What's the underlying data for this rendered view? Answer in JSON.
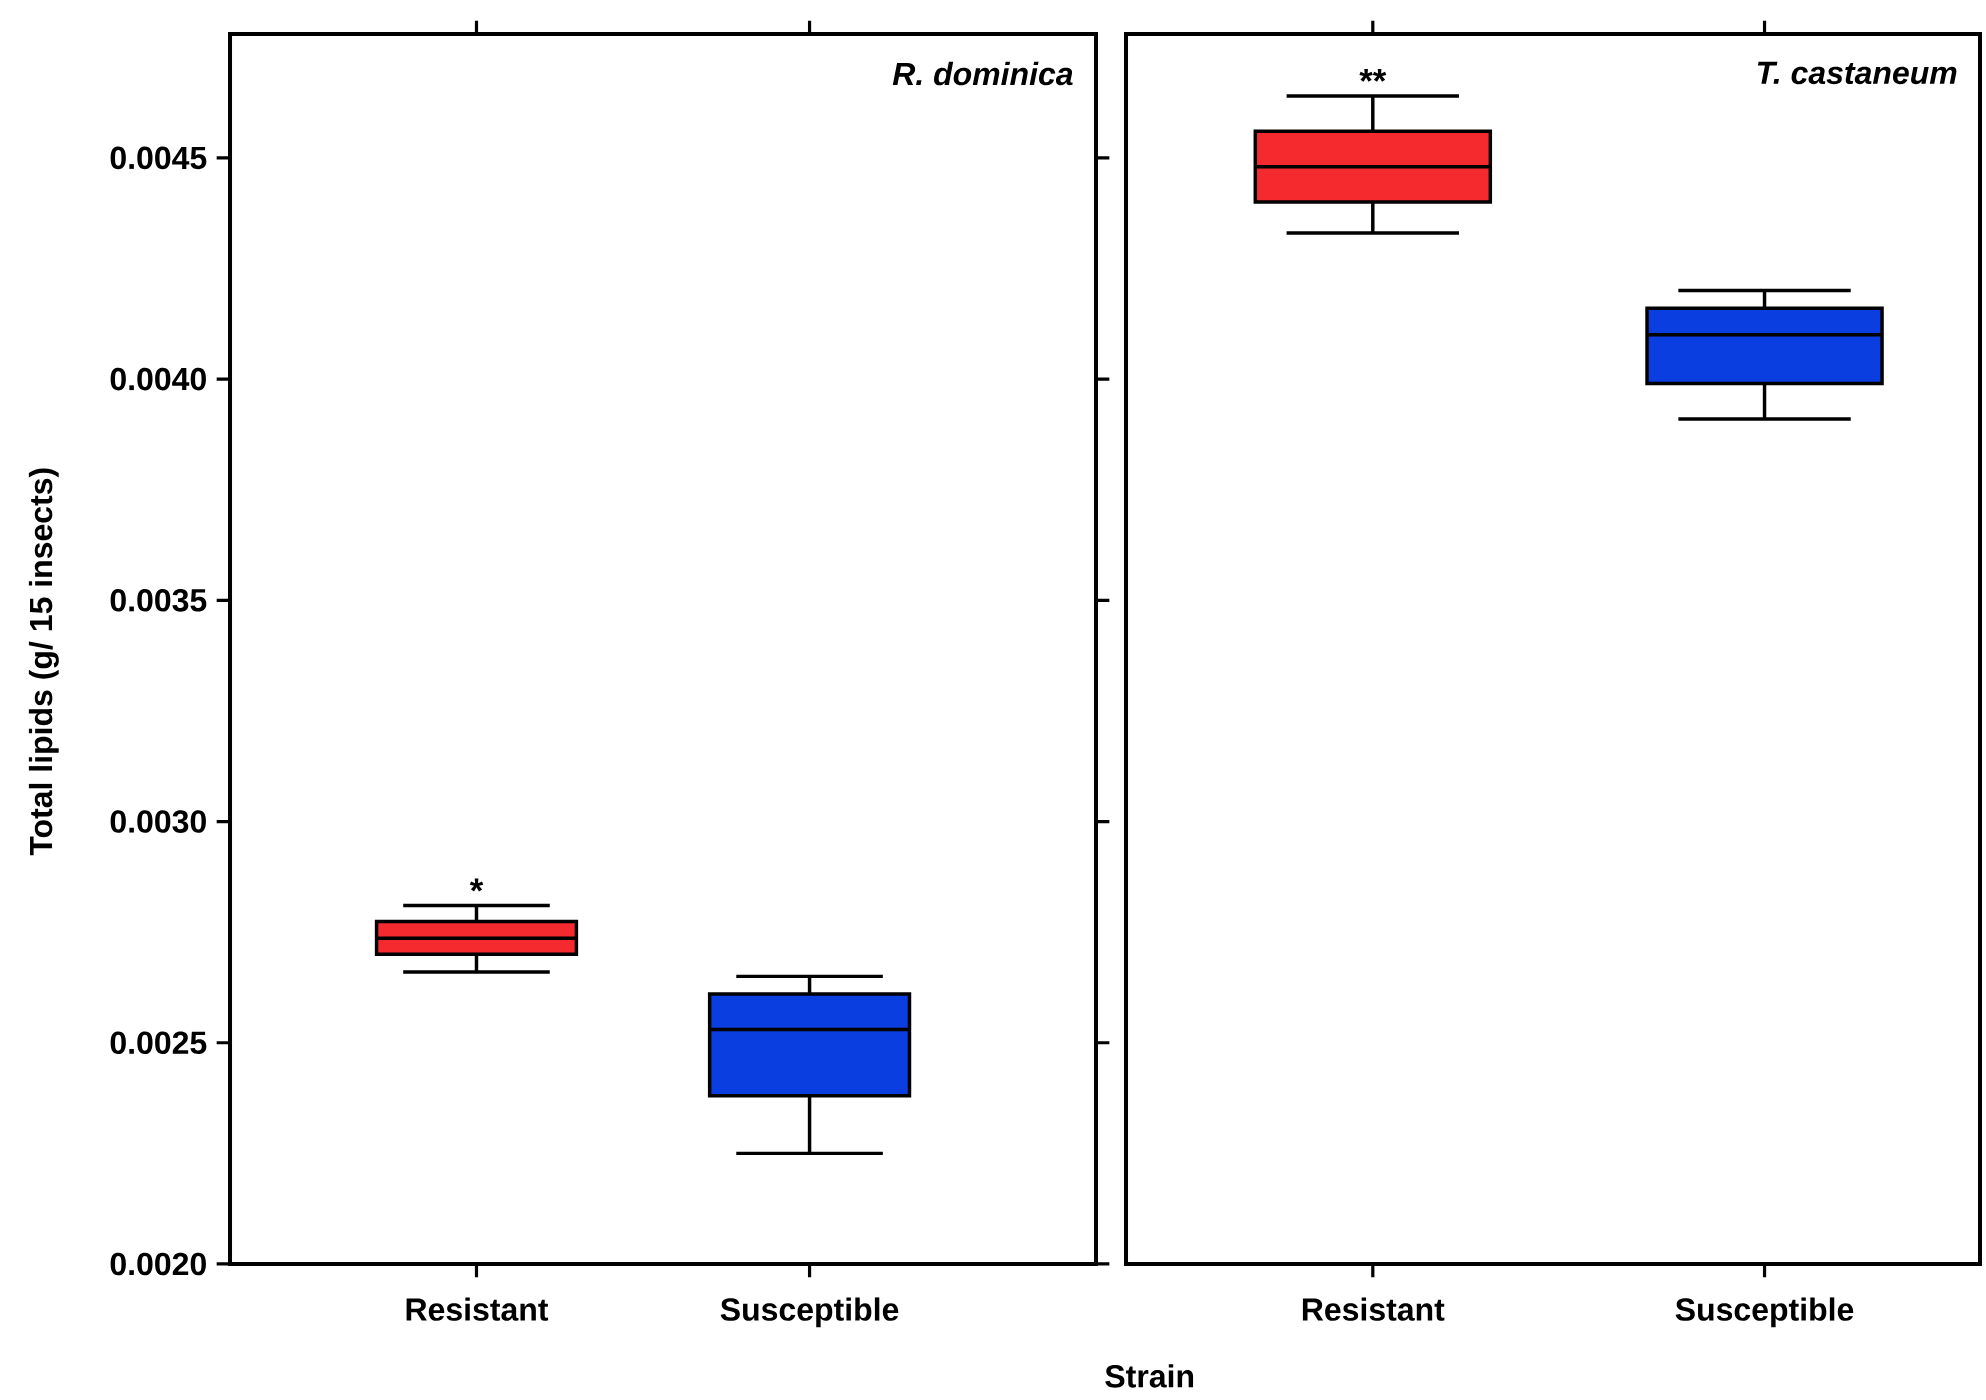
{
  "chart_data": [
    {
      "type": "box",
      "title": "R. dominica",
      "xlabel": "Strain",
      "ylabel": "Total lipids (g/ 15 insects)",
      "categories": [
        "Resistant",
        "Susceptible"
      ],
      "colors": [
        "#f52a2f",
        "#0a3ee0"
      ],
      "boxes": [
        {
          "low": 0.00266,
          "q1": 0.0027,
          "median": 0.002736,
          "q3": 0.002774,
          "high": 0.00281
        },
        {
          "low": 0.00225,
          "q1": 0.00238,
          "median": 0.00253,
          "q3": 0.00261,
          "high": 0.00265
        }
      ],
      "ylim": [
        0.002,
        0.00478
      ],
      "yticks": [
        {
          "value": 0.002,
          "label": "0.0020"
        },
        {
          "value": 0.0025,
          "label": "0.0025"
        },
        {
          "value": 0.003,
          "label": "0.0030"
        },
        {
          "value": 0.0035,
          "label": "0.0035"
        },
        {
          "value": 0.004,
          "label": "0.0040"
        },
        {
          "value": 0.0045,
          "label": "0.0045"
        }
      ],
      "annotations": [
        {
          "text": "*",
          "x": "Resistant",
          "y": 0.00281
        }
      ]
    },
    {
      "type": "box",
      "title": "T. castaneum",
      "categories": [
        "Resistant",
        "Susceptible"
      ],
      "colors": [
        "#f52a2f",
        "#0a3ee0"
      ],
      "boxes": [
        {
          "low": 0.00433,
          "q1": 0.0044,
          "median": 0.00448,
          "q3": 0.00456,
          "high": 0.00464
        },
        {
          "low": 0.00391,
          "q1": 0.00399,
          "median": 0.0041,
          "q3": 0.00416,
          "high": 0.0042
        }
      ],
      "ylim": [
        0.002,
        0.00478
      ],
      "tick_labels": "x",
      "annotations": [
        {
          "text": "**",
          "x": "Resistant",
          "y": 0.00464
        }
      ]
    }
  ]
}
